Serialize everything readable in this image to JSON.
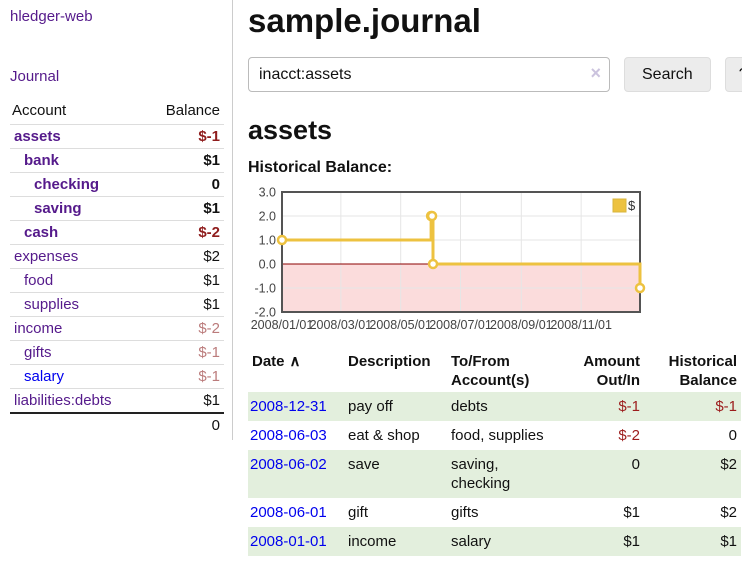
{
  "app": {
    "brand": "hledger-web",
    "nav": {
      "journal": "Journal"
    }
  },
  "sidebar": {
    "header": {
      "account": "Account",
      "balance": "Balance"
    },
    "accounts": [
      {
        "name": "assets",
        "depth": 1,
        "balance": "$-1",
        "in_account": true,
        "balance_tone": "negative"
      },
      {
        "name": "bank",
        "depth": 2,
        "balance": "$1",
        "in_account": true,
        "balance_tone": "normal"
      },
      {
        "name": "checking",
        "depth": 3,
        "balance": "0",
        "in_account": true,
        "balance_tone": "normal"
      },
      {
        "name": "saving",
        "depth": 3,
        "balance": "$1",
        "in_account": true,
        "balance_tone": "normal"
      },
      {
        "name": "cash",
        "depth": 2,
        "balance": "$-2",
        "in_account": true,
        "balance_tone": "negative"
      },
      {
        "name": "expenses",
        "depth": 1,
        "balance": "$2",
        "in_account": false,
        "balance_tone": "normal"
      },
      {
        "name": "food",
        "depth": 2,
        "balance": "$1",
        "in_account": false,
        "balance_tone": "normal"
      },
      {
        "name": "supplies",
        "depth": 2,
        "balance": "$1",
        "in_account": false,
        "balance_tone": "normal"
      },
      {
        "name": "income",
        "depth": 1,
        "balance": "$-2",
        "in_account": false,
        "balance_tone": "negative-muted"
      },
      {
        "name": "gifts",
        "depth": 2,
        "balance": "$-1",
        "in_account": false,
        "balance_tone": "negative-muted"
      },
      {
        "name": "salary",
        "depth": 2,
        "balance": "$-1",
        "in_account": false,
        "balance_tone": "negative-muted",
        "link_tone": "unvisited"
      },
      {
        "name": "liabilities:debts",
        "depth": 1,
        "balance": "$1",
        "in_account": false,
        "balance_tone": "normal"
      }
    ],
    "total": "0"
  },
  "header": {
    "title": "sample.journal"
  },
  "search": {
    "value": "inacct:assets",
    "clear_icon": "×",
    "search_button": "Search",
    "help_button": "?"
  },
  "main": {
    "account_heading": "assets",
    "chart_label": "Historical Balance:"
  },
  "chart_data": {
    "type": "line",
    "style": "step",
    "title": "Historical Balance",
    "x_range": [
      "2008-01-01",
      "2008-12-31"
    ],
    "ylim": [
      -2,
      3
    ],
    "y_ticks": [
      3.0,
      2.0,
      1.0,
      0.0,
      -1.0,
      -2.0
    ],
    "x_tick_labels": [
      "2008/01/01",
      "2008/03/01",
      "2008/05/01",
      "2008/07/01",
      "2008/09/01",
      "2008/11/01"
    ],
    "grid": true,
    "legend_position": "top-right",
    "legend": [
      {
        "label": "$",
        "color": "#edc240"
      }
    ],
    "series": [
      {
        "name": "$",
        "color": "#edc240",
        "points": [
          {
            "date": "2008-01-01",
            "value": 1
          },
          {
            "date": "2008-06-01",
            "value": 2
          },
          {
            "date": "2008-06-02",
            "value": 2
          },
          {
            "date": "2008-06-03",
            "value": 0
          },
          {
            "date": "2008-12-31",
            "value": -1
          }
        ]
      }
    ],
    "negative_region_color": "#fbdcdc",
    "zero_line_color": "#8b0000",
    "grid_color": "#e6e6e6",
    "border_color": "#545454"
  },
  "register": {
    "headers": {
      "date": "Date",
      "sort_icon": "∧",
      "description": "Description",
      "accounts": "To/From Account(s)",
      "amount": "Amount Out/In",
      "balance": "Historical Balance"
    },
    "rows": [
      {
        "date": "2008-12-31",
        "description": "pay off",
        "accounts": "debts",
        "amount": "$-1",
        "balance": "$-1"
      },
      {
        "date": "2008-06-03",
        "description": "eat & shop",
        "accounts": "food, supplies",
        "amount": "$-2",
        "balance": "0"
      },
      {
        "date": "2008-06-02",
        "description": "save",
        "accounts": "saving, checking",
        "amount": "0",
        "balance": "$2"
      },
      {
        "date": "2008-06-01",
        "description": "gift",
        "accounts": "gifts",
        "amount": "$1",
        "balance": "$2"
      },
      {
        "date": "2008-01-01",
        "description": "income",
        "accounts": "salary",
        "amount": "$1",
        "balance": "$1"
      }
    ]
  },
  "colors": {
    "accent_purple": "#551a8b",
    "link_blue": "#0000ee",
    "negative": "#8f1d1d",
    "negative_muted": "#bb7b7b",
    "row_stripe": "#e3efdd",
    "chart_line": "#edc240"
  }
}
